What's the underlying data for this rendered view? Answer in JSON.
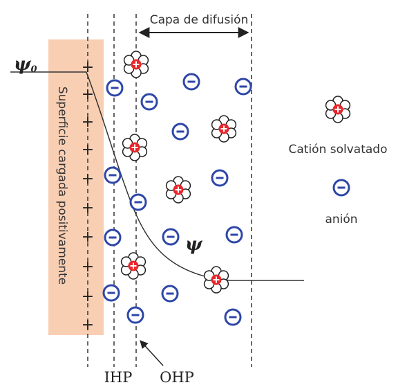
{
  "labels": {
    "diffusion_layer": "Capa de difusión",
    "psi0_symbol": "ψ",
    "psi0_subscript": "0",
    "psi": "ψ",
    "surface": "Superficie cargada positivamente",
    "legend_cation": "Catión solvatado",
    "legend_anion": "anión",
    "ihp": "IHP",
    "ohp": "OHP"
  },
  "colors": {
    "surface_fill": "#f9cfb4",
    "anion": "#2e46a8",
    "cation_core": "#e8272c",
    "line": "#333333"
  },
  "symbols": {
    "plus": "+",
    "anion_icon": "minus-in-circle-icon",
    "cation_icon": "solvated-cation-icon"
  }
}
